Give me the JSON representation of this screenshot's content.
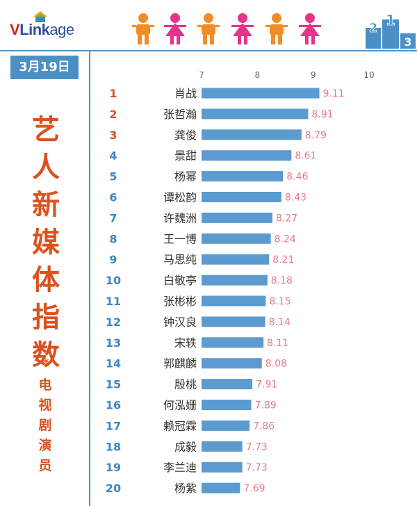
{
  "logo": {
    "v": "V",
    "link": "Link",
    "age": "age"
  },
  "date": "3月19日",
  "title_chars": [
    "艺",
    "人",
    "新",
    "媒",
    "体",
    "指",
    "数"
  ],
  "star": "*",
  "subtitle_chars": [
    "电",
    "视",
    "剧",
    "演",
    "员"
  ],
  "podium_labels": [
    "2",
    "1",
    "3"
  ],
  "colors": {
    "bar": "#5b9bd0",
    "value_text": "#e8788a",
    "rank_top": "#d9531e",
    "rank_other": "#3f86c3",
    "figure_orange": "#f28c28",
    "figure_pink": "#e6338b"
  },
  "chart_data": {
    "type": "bar",
    "orientation": "horizontal",
    "xlim": [
      7,
      10
    ],
    "x_ticks": [
      "7",
      "8",
      "9",
      "10"
    ],
    "ranks": [
      "1",
      "2",
      "3",
      "4",
      "5",
      "6",
      "7",
      "8",
      "9",
      "10",
      "11",
      "12",
      "13",
      "14",
      "15",
      "16",
      "17",
      "18",
      "19",
      "20"
    ],
    "categories": [
      "肖战",
      "张哲瀚",
      "龚俊",
      "景甜",
      "杨幂",
      "谭松韵",
      "许魏洲",
      "王一博",
      "马思纯",
      "白敬亭",
      "张彬彬",
      "钟汉良",
      "宋轶",
      "郭麒麟",
      "殷桃",
      "何泓姗",
      "赖冠霖",
      "成毅",
      "李兰迪",
      "杨紫"
    ],
    "values": [
      9.11,
      8.91,
      8.79,
      8.61,
      8.46,
      8.43,
      8.27,
      8.24,
      8.21,
      8.18,
      8.15,
      8.14,
      8.11,
      8.08,
      7.91,
      7.89,
      7.86,
      7.73,
      7.73,
      7.69
    ],
    "value_labels": [
      "9.11",
      "8.91",
      "8.79",
      "8.61",
      "8.46",
      "8.43",
      "8.27",
      "8.24",
      "8.21",
      "8.18",
      "8.15",
      "8.14",
      "8.11",
      "8.08",
      "7.91",
      "7.89",
      "7.86",
      "7.73",
      "7.73",
      "7.69"
    ],
    "grid": false
  }
}
